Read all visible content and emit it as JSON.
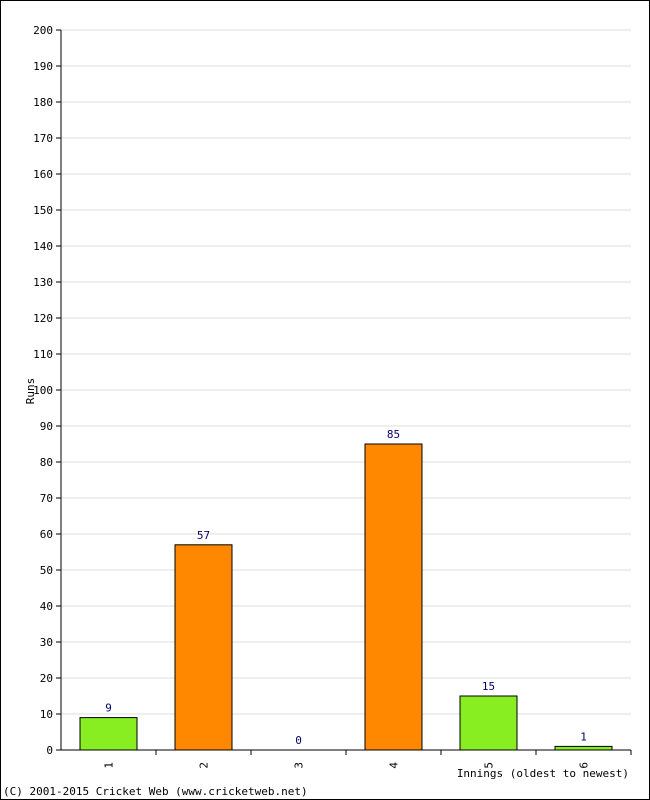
{
  "chart_data": {
    "type": "bar",
    "xlabel": "Innings (oldest to newest)",
    "ylabel": "Runs",
    "ylim": [
      0,
      200
    ],
    "ytick_step": 10,
    "categories": [
      "1",
      "2",
      "3",
      "4",
      "5",
      "6"
    ],
    "values": [
      9,
      57,
      0,
      85,
      15,
      1
    ],
    "value_labels": [
      "9",
      "57",
      "0",
      "85",
      "15",
      "1"
    ],
    "bar_colors": [
      "#88ee22",
      "#ff8800",
      "#88ee22",
      "#ff8800",
      "#88ee22",
      "#88ee22"
    ],
    "grid": true,
    "value_label_color": "#000066"
  },
  "footer": {
    "copyright": "(C) 2001-2015 Cricket Web (www.cricketweb.net)"
  }
}
